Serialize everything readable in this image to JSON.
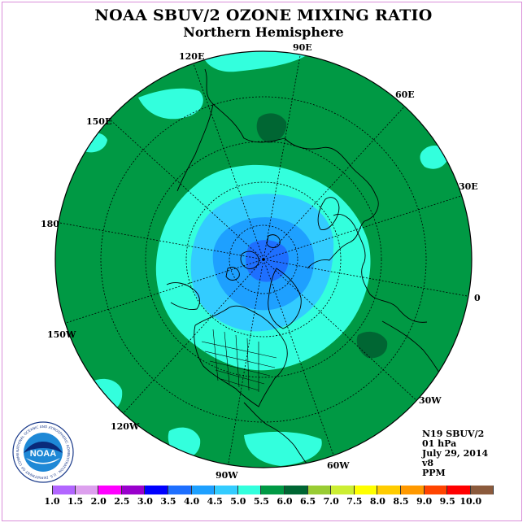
{
  "title": "NOAA SBUV/2 OZONE MIXING RATIO",
  "subtitle": "Northern Hemisphere",
  "longitude_labels": [
    "90E",
    "60E",
    "30E",
    "0",
    "30W",
    "60W",
    "90W",
    "120W",
    "150W",
    "180",
    "150E",
    "120E"
  ],
  "info": {
    "satellite": "N19 SBUV/2",
    "level": "01 hPa",
    "date": "July 29, 2014",
    "version": "v8",
    "units": "PPM"
  },
  "legend": {
    "ticks": [
      "1.0",
      "1.5",
      "2.0",
      "2.5",
      "3.0",
      "3.5",
      "4.0",
      "4.5",
      "5.0",
      "5.5",
      "6.0",
      "6.5",
      "7.0",
      "7.5",
      "8.0",
      "8.5",
      "9.0",
      "9.5",
      "10.0"
    ],
    "colors": [
      "#b266ff",
      "#dda0ee",
      "#ff00ff",
      "#9900cc",
      "#0000ff",
      "#1e6fff",
      "#1ea0ff",
      "#33ccff",
      "#33ffdd",
      "#009944",
      "#006633",
      "#99cc33",
      "#ccee33",
      "#ffff00",
      "#ffcc00",
      "#ff9900",
      "#ff4400",
      "#ff0000",
      "#8b5a3c"
    ]
  },
  "colors": {
    "ocean_background": "#009944",
    "dark_green": "#006633",
    "cyan": "#33ffdd",
    "light_blue": "#33ccff",
    "mid_blue": "#1ea0ff",
    "pole_blue": "#1e6fff"
  },
  "logo": {
    "text": "NOAA",
    "ring_text": "NATIONAL OCEANIC AND ATMOSPHERIC ADMINISTRATION · U.S. DEPARTMENT OF COMMERCE"
  }
}
